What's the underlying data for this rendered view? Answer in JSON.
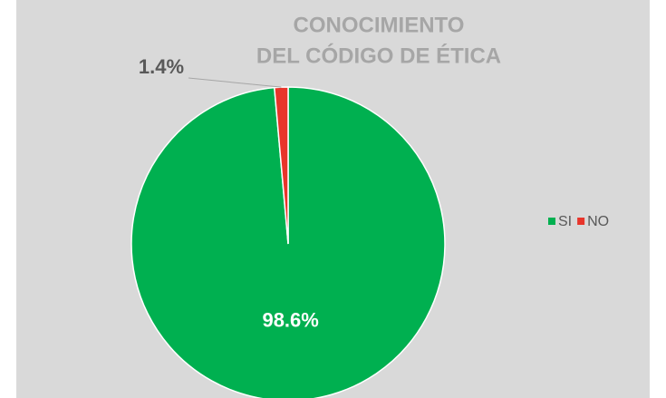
{
  "chart_data": {
    "type": "pie",
    "title": [
      "CONOCIMIENTO",
      "DEL CÓDIGO DE ÉTICA"
    ],
    "categories": [
      "SI",
      "NO"
    ],
    "values": [
      98.6,
      1.4
    ],
    "value_labels": [
      "98.6%",
      "1.4%"
    ],
    "colors": [
      "#00b050",
      "#e8352b"
    ],
    "legend": "right"
  }
}
